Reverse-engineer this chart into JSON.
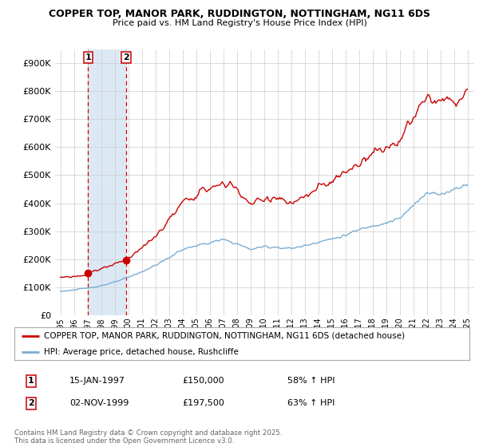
{
  "title": "COPPER TOP, MANOR PARK, RUDDINGTON, NOTTINGHAM, NG11 6DS",
  "subtitle": "Price paid vs. HM Land Registry's House Price Index (HPI)",
  "hpi_label": "HPI: Average price, detached house, Rushcliffe",
  "property_label": "COPPER TOP, MANOR PARK, RUDDINGTON, NOTTINGHAM, NG11 6DS (detached house)",
  "sale1_date": "15-JAN-1997",
  "sale1_price": 150000,
  "sale1_hpi": "58% ↑ HPI",
  "sale2_date": "02-NOV-1999",
  "sale2_price": 197500,
  "sale2_hpi": "63% ↑ HPI",
  "sale1_x": 1997.04,
  "sale2_x": 1999.84,
  "ylim_min": 0,
  "ylim_max": 950000,
  "xlim_start": 1994.6,
  "xlim_end": 2025.5,
  "bg_color": "#ffffff",
  "grid_color": "#cccccc",
  "hpi_color": "#7aadd4",
  "property_color": "#cc0000",
  "vline_color": "#cc0000",
  "highlight_bg": "#dce9f5",
  "legend_border_color": "#aaaaaa",
  "footer_color": "#666666",
  "footer_text": "Contains HM Land Registry data © Crown copyright and database right 2025.\nThis data is licensed under the Open Government Licence v3.0.",
  "hpi_anchors_x": [
    1995.0,
    1996.0,
    1997.0,
    1998.0,
    1999.0,
    2000.0,
    2001.0,
    2002.0,
    2003.0,
    2004.0,
    2005.0,
    2006.0,
    2007.0,
    2008.0,
    2009.0,
    2010.0,
    2011.0,
    2012.0,
    2013.0,
    2014.0,
    2015.0,
    2016.0,
    2017.0,
    2018.0,
    2019.0,
    2020.0,
    2021.0,
    2022.0,
    2023.0,
    2024.0,
    2025.0
  ],
  "hpi_anchors_y": [
    85000,
    90000,
    97000,
    105000,
    118000,
    135000,
    155000,
    178000,
    205000,
    235000,
    248000,
    258000,
    270000,
    255000,
    235000,
    245000,
    242000,
    238000,
    248000,
    262000,
    272000,
    285000,
    305000,
    320000,
    330000,
    345000,
    390000,
    440000,
    430000,
    450000,
    470000
  ],
  "prop_anchors_x": [
    1995.0,
    1996.5,
    1997.04,
    1999.84,
    2001.0,
    2002.0,
    2003.0,
    2004.0,
    2005.0,
    2006.0,
    2007.5,
    2008.0,
    2009.0,
    2010.0,
    2011.0,
    2012.0,
    2013.0,
    2014.0,
    2015.0,
    2016.0,
    2017.0,
    2018.0,
    2019.0,
    2020.0,
    2021.0,
    2022.0,
    2023.0,
    2023.5,
    2024.0,
    2025.0
  ],
  "prop_anchors_y": [
    135000,
    140000,
    150000,
    197500,
    240000,
    280000,
    340000,
    400000,
    430000,
    455000,
    470000,
    450000,
    395000,
    415000,
    420000,
    395000,
    420000,
    455000,
    475000,
    510000,
    540000,
    585000,
    595000,
    625000,
    700000,
    780000,
    760000,
    770000,
    750000,
    800000
  ]
}
